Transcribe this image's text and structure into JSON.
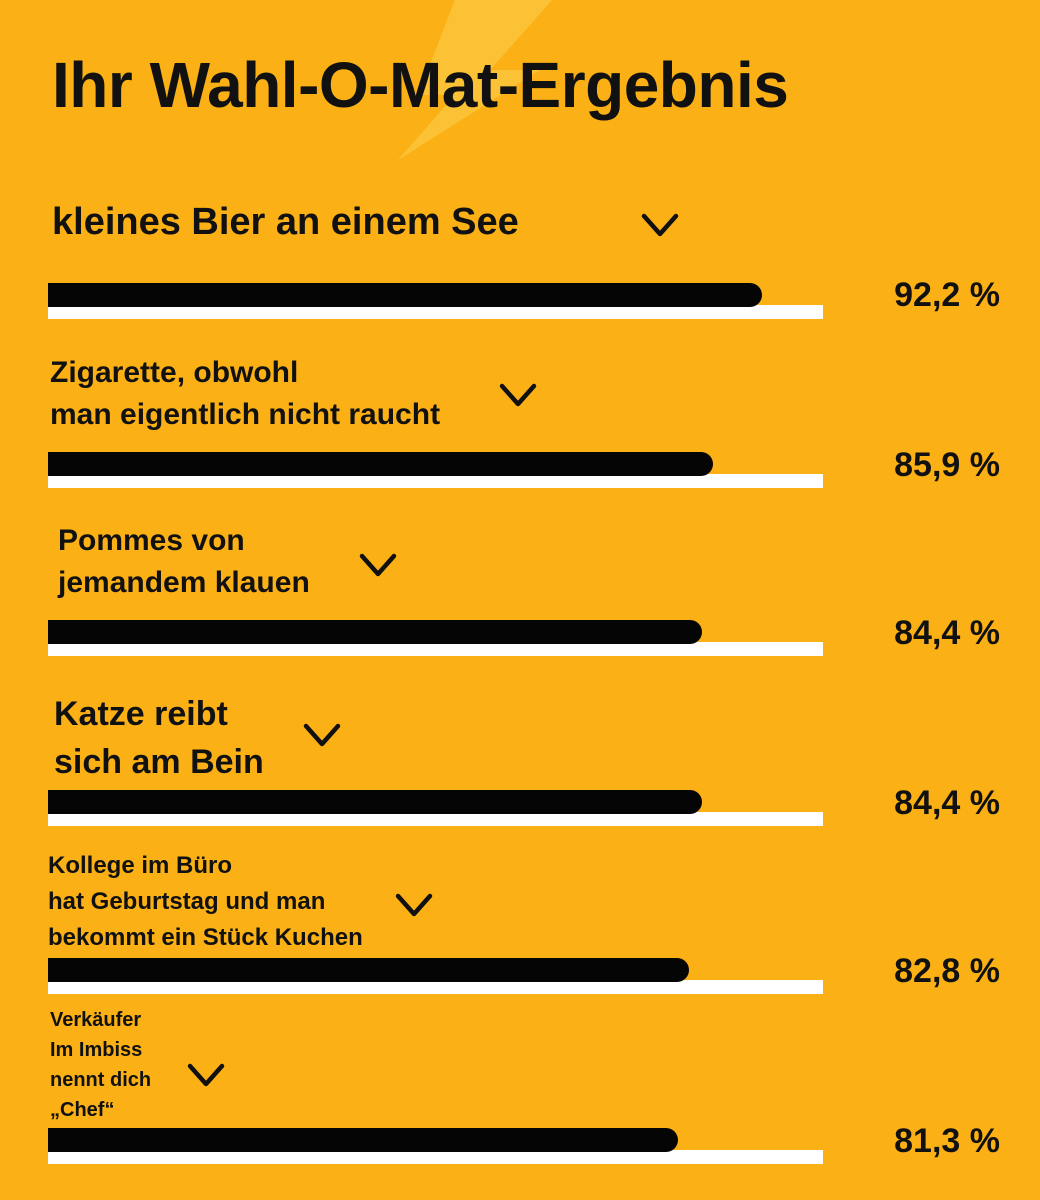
{
  "title": "Ihr Wahl-O-Mat-Ergebnis",
  "colors": {
    "background": "#FBB116",
    "bar": "#050505",
    "track": "#FFFFFF",
    "text": "#111111"
  },
  "chart_data": {
    "type": "bar",
    "title": "Ihr Wahl-O-Mat-Ergebnis",
    "orientation": "horizontal",
    "xlim": [
      0,
      100
    ],
    "unit": "%",
    "categories": [
      "kleines Bier an einem See",
      "Zigarette, obwohl man eigentlich nicht raucht",
      "Pommes von jemandem klauen",
      "Katze reibt sich am Bein",
      "Kollege im Büro hat Geburtstag und man bekommt ein Stück Kuchen",
      "Verkäufer Im Imbiss nennt dich „Chef“"
    ],
    "values": [
      92.2,
      85.9,
      84.4,
      84.4,
      82.8,
      81.3
    ],
    "value_labels": [
      "92,2 %",
      "85,9 %",
      "84,4 %",
      "84,4 %",
      "82,8 %",
      "81,3 %"
    ],
    "label_lines": [
      [
        "kleines Bier an einem See"
      ],
      [
        "Zigarette, obwohl",
        "man eigentlich nicht raucht"
      ],
      [
        "Pommes von",
        "jemandem klauen"
      ],
      [
        "Katze reibt",
        "sich am Bein"
      ],
      [
        "Kollege im Büro",
        "hat Geburtstag  und man",
        "bekommt ein Stück Kuchen"
      ],
      [
        "Verkäufer",
        "Im Imbiss",
        "nennt dich",
        "„Chef“"
      ]
    ],
    "icons": [
      "chevron-down-icon"
    ]
  }
}
